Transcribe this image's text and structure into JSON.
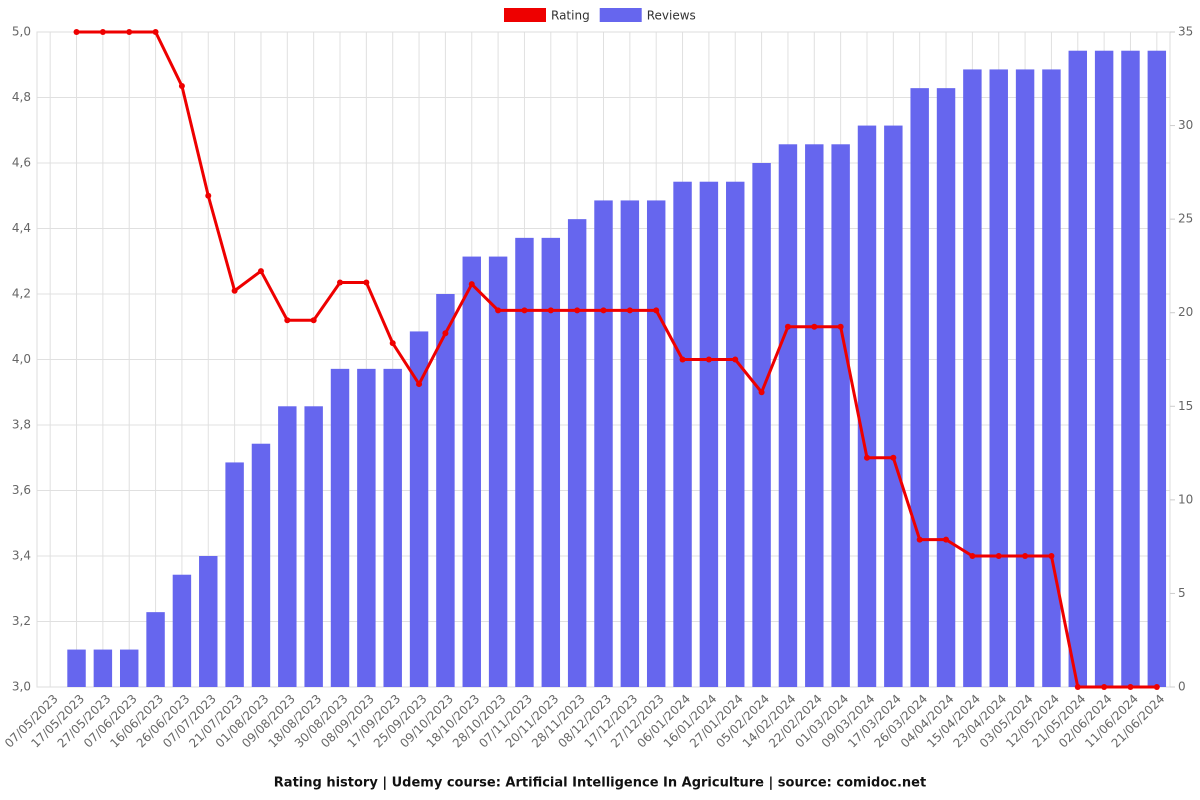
{
  "chart_data": {
    "type": "bar-line",
    "title": "Rating history | Udemy course: Artificial Intelligence In Agriculture | source: comidoc.net",
    "categories": [
      "07/05/2023",
      "17/05/2023",
      "27/05/2023",
      "07/06/2023",
      "16/06/2023",
      "26/06/2023",
      "07/07/2023",
      "21/07/2023",
      "01/08/2023",
      "09/08/2023",
      "18/08/2023",
      "30/08/2023",
      "08/09/2023",
      "17/09/2023",
      "25/09/2023",
      "09/10/2023",
      "18/10/2023",
      "28/10/2023",
      "07/11/2023",
      "20/11/2023",
      "28/11/2023",
      "08/12/2023",
      "17/12/2023",
      "27/12/2023",
      "06/01/2024",
      "16/01/2024",
      "27/01/2024",
      "05/02/2024",
      "14/02/2024",
      "22/02/2024",
      "01/03/2024",
      "09/03/2024",
      "17/03/2024",
      "26/03/2024",
      "04/04/2024",
      "15/04/2024",
      "23/04/2024",
      "03/05/2024",
      "12/05/2024",
      "21/05/2024",
      "02/06/2024",
      "11/06/2024",
      "21/06/2024"
    ],
    "series": [
      {
        "name": "Rating",
        "color": "#ee0000",
        "type": "line",
        "axis": "y",
        "values": [
          null,
          5.0,
          5.0,
          5.0,
          5.0,
          4.835,
          4.5,
          4.21,
          4.27,
          4.12,
          4.12,
          4.235,
          4.235,
          4.05,
          3.925,
          4.08,
          4.23,
          4.15,
          4.15,
          4.15,
          4.15,
          4.15,
          4.15,
          4.15,
          4.0,
          4.0,
          4.0,
          3.9,
          4.1,
          4.1,
          4.1,
          3.7,
          3.7,
          3.45,
          3.45,
          3.4,
          3.4,
          3.4,
          3.4,
          3.0,
          3.0,
          3.0,
          3.0
        ]
      },
      {
        "name": "Reviews",
        "color": "#6666ee",
        "type": "bar",
        "axis": "y2",
        "values": [
          null,
          2,
          2,
          2,
          4,
          6,
          7,
          12,
          13,
          15,
          15,
          17,
          17,
          17,
          19,
          21,
          23,
          23,
          24,
          24,
          25,
          26,
          26,
          26,
          27,
          27,
          27,
          28,
          29,
          29,
          29,
          30,
          30,
          32,
          32,
          33,
          33,
          33,
          33,
          34,
          34,
          34,
          34
        ]
      }
    ],
    "ylim": [
      3.0,
      5.0
    ],
    "yticks": [
      {
        "value": 3.0,
        "label": "3,0"
      },
      {
        "value": 3.2,
        "label": "3,2"
      },
      {
        "value": 3.4,
        "label": "3,4"
      },
      {
        "value": 3.6,
        "label": "3,6"
      },
      {
        "value": 3.8,
        "label": "3,8"
      },
      {
        "value": 4.0,
        "label": "4,0"
      },
      {
        "value": 4.2,
        "label": "4,2"
      },
      {
        "value": 4.4,
        "label": "4,4"
      },
      {
        "value": 4.6,
        "label": "4,6"
      },
      {
        "value": 4.8,
        "label": "4,8"
      },
      {
        "value": 5.0,
        "label": "5,0"
      }
    ],
    "y2lim": [
      0,
      35
    ],
    "y2ticks": [
      0,
      5,
      10,
      15,
      20,
      25,
      30,
      35
    ],
    "grid": true
  }
}
